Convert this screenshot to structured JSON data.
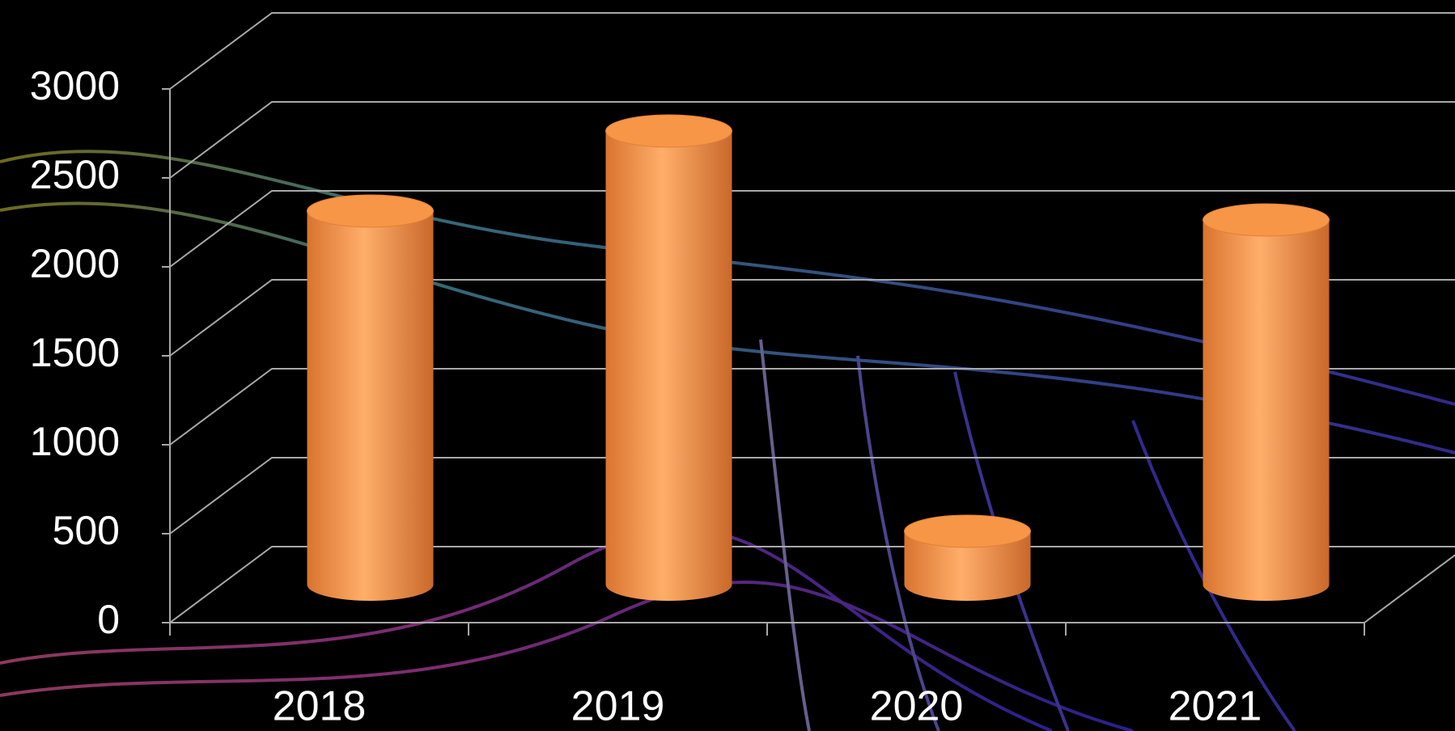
{
  "chart_data": {
    "type": "bar3d",
    "categories": [
      "2018",
      "2019",
      "2020",
      "2021"
    ],
    "values": [
      2100,
      2550,
      300,
      2050
    ],
    "color": "#f79646",
    "ylim": [
      0,
      3000
    ],
    "yticks": [
      0,
      500,
      1000,
      1500,
      2000,
      2500,
      3000
    ],
    "grid": true
  }
}
